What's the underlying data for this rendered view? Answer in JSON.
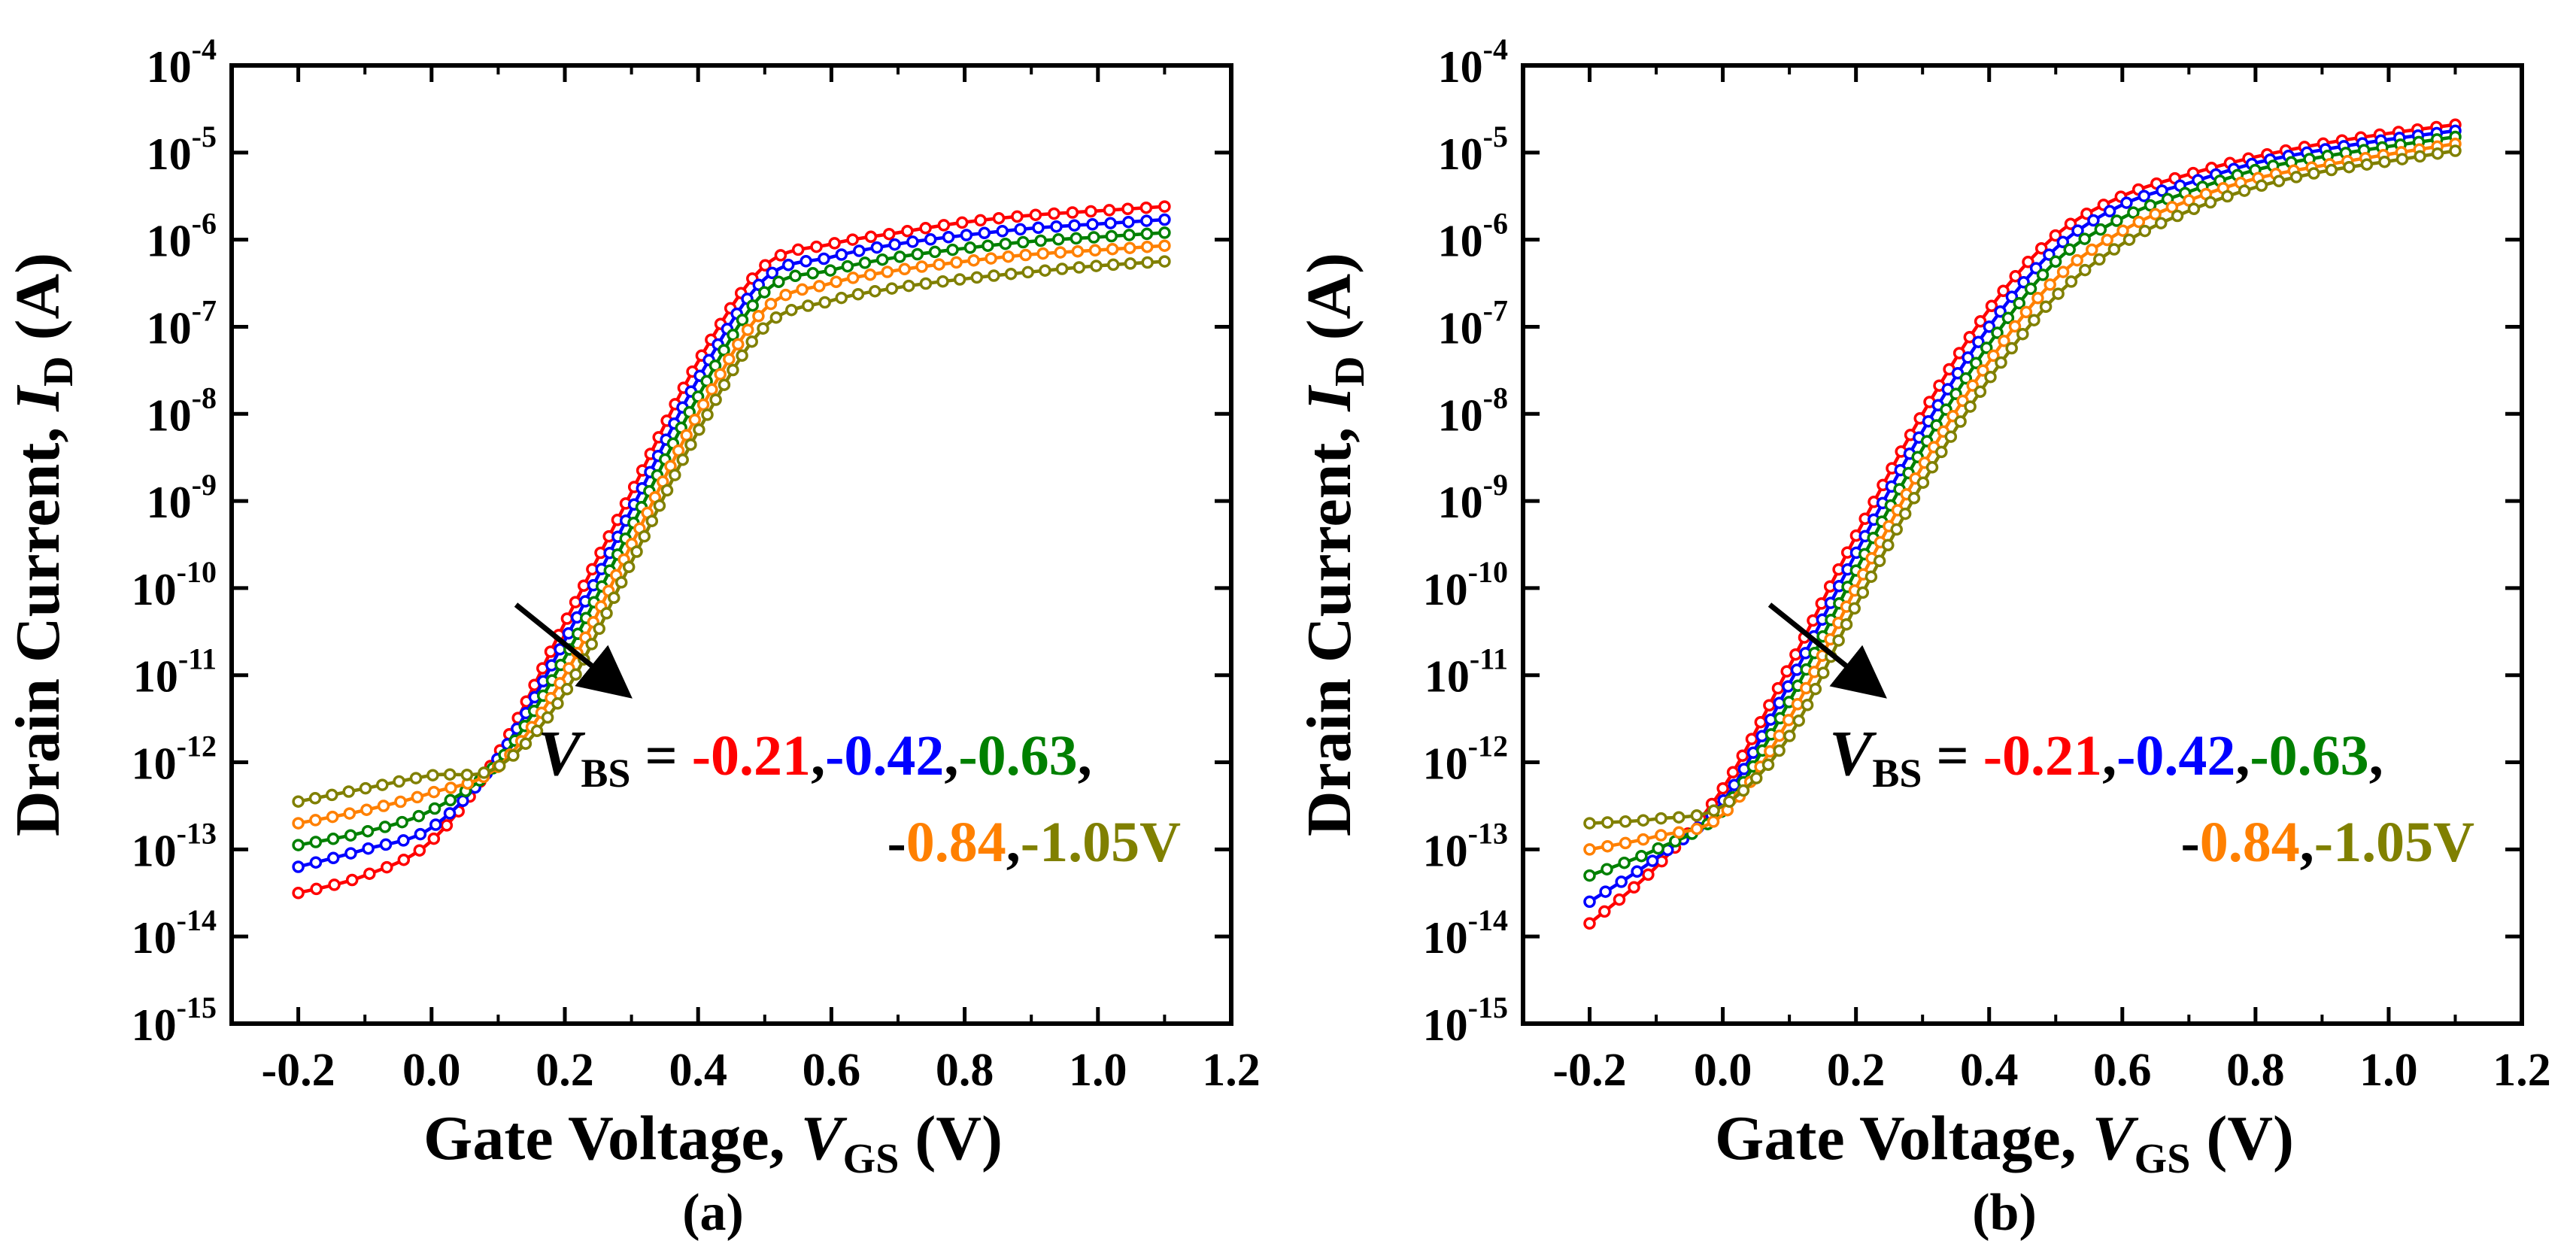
{
  "colors": {
    "vbs_021": "#ff0000",
    "vbs_042": "#0000ff",
    "vbs_063": "#008000",
    "vbs_084": "#ff8000",
    "vbs_105": "#808000",
    "axes": "#000000"
  },
  "chart_data": [
    {
      "type": "line",
      "panel": "(a)",
      "xlabel": "Gate Voltage,",
      "xlabel_var": "V",
      "xlabel_sub": "GS",
      "xlabel_unit": "(V)",
      "ylabel": "Drain Current,",
      "ylabel_var": "I",
      "ylabel_sub": "D",
      "ylabel_unit": "(A)",
      "xlim": [
        -0.3,
        1.2
      ],
      "ylim_exp": [
        -15,
        -4
      ],
      "yscale": "log",
      "x_ticks": [
        "-0.2",
        "0.0",
        "0.2",
        "0.4",
        "0.6",
        "0.8",
        "1.0",
        "1.2"
      ],
      "y_tick_exponents": [
        "-15",
        "-14",
        "-13",
        "-12",
        "-11",
        "-10",
        "-9",
        "-8",
        "-7",
        "-6",
        "-5",
        "-4"
      ],
      "annotation": {
        "var": "V",
        "sub": "BS",
        "eq": " = ",
        "values_line1": [
          "-0.21",
          "-0.42",
          "-0.63"
        ],
        "values_line2": [
          "-",
          "0.84",
          "-1.05V"
        ]
      },
      "series": [
        {
          "name": "-0.21",
          "color_key": "vbs_021",
          "x": [
            -0.2,
            -0.1,
            0.0,
            0.1,
            0.2,
            0.3,
            0.4,
            0.5,
            0.6,
            0.7,
            0.8,
            0.9,
            1.0,
            1.1
          ],
          "y_exp": [
            -13.5,
            -13.3,
            -12.9,
            -11.9,
            -10.4,
            -8.9,
            -7.4,
            -6.3,
            -6.05,
            -5.92,
            -5.8,
            -5.72,
            -5.67,
            -5.62
          ]
        },
        {
          "name": "-0.42",
          "color_key": "vbs_042",
          "x": [
            -0.2,
            -0.1,
            0.0,
            0.1,
            0.2,
            0.3,
            0.4,
            0.5,
            0.6,
            0.7,
            0.8,
            0.9,
            1.0,
            1.1
          ],
          "y_exp": [
            -13.2,
            -13.0,
            -12.75,
            -11.95,
            -10.6,
            -9.1,
            -7.6,
            -6.45,
            -6.2,
            -6.05,
            -5.95,
            -5.87,
            -5.82,
            -5.77
          ]
        },
        {
          "name": "-0.63",
          "color_key": "vbs_063",
          "x": [
            -0.2,
            -0.1,
            0.0,
            0.1,
            0.2,
            0.3,
            0.4,
            0.5,
            0.6,
            0.7,
            0.8,
            0.9,
            1.0,
            1.1
          ],
          "y_exp": [
            -12.95,
            -12.8,
            -12.55,
            -12.0,
            -10.8,
            -9.3,
            -7.8,
            -6.6,
            -6.35,
            -6.2,
            -6.1,
            -6.02,
            -5.97,
            -5.92
          ]
        },
        {
          "name": "-0.84",
          "color_key": "vbs_084",
          "x": [
            -0.2,
            -0.1,
            0.0,
            0.1,
            0.2,
            0.3,
            0.4,
            0.5,
            0.6,
            0.7,
            0.8,
            0.9,
            1.0,
            1.1
          ],
          "y_exp": [
            -12.7,
            -12.55,
            -12.35,
            -12.05,
            -11.0,
            -9.5,
            -8.0,
            -6.8,
            -6.5,
            -6.35,
            -6.25,
            -6.17,
            -6.12,
            -6.07
          ]
        },
        {
          "name": "-1.05",
          "color_key": "vbs_105",
          "x": [
            -0.2,
            -0.1,
            0.0,
            0.1,
            0.2,
            0.3,
            0.4,
            0.5,
            0.6,
            0.7,
            0.8,
            0.9,
            1.0,
            1.1
          ],
          "y_exp": [
            -12.45,
            -12.3,
            -12.15,
            -12.05,
            -11.2,
            -9.7,
            -8.2,
            -7.0,
            -6.7,
            -6.55,
            -6.45,
            -6.37,
            -6.3,
            -6.25
          ]
        }
      ]
    },
    {
      "type": "line",
      "panel": "(b)",
      "xlabel": "Gate Voltage,",
      "xlabel_var": "V",
      "xlabel_sub": "GS",
      "xlabel_unit": "(V)",
      "ylabel": "Drain Current,",
      "ylabel_var": "I",
      "ylabel_sub": "D",
      "ylabel_unit": "(A)",
      "xlim": [
        -0.3,
        1.2
      ],
      "ylim_exp": [
        -15,
        -4
      ],
      "yscale": "log",
      "x_ticks": [
        "-0.2",
        "0.0",
        "0.2",
        "0.4",
        "0.6",
        "0.8",
        "1.0",
        "1.2"
      ],
      "y_tick_exponents": [
        "-15",
        "-14",
        "-13",
        "-12",
        "-11",
        "-10",
        "-9",
        "-8",
        "-7",
        "-6",
        "-5",
        "-4"
      ],
      "annotation": {
        "var": "V",
        "sub": "BS",
        "eq": " = ",
        "values_line1": [
          "-0.21",
          "-0.42",
          "-0.63"
        ],
        "values_line2": [
          "-",
          "0.84",
          "-1.05V"
        ]
      },
      "series": [
        {
          "name": "-0.21",
          "color_key": "vbs_021",
          "x": [
            -0.2,
            -0.1,
            0.0,
            0.1,
            0.2,
            0.3,
            0.4,
            0.5,
            0.6,
            0.7,
            0.8,
            0.9,
            1.0,
            1.1
          ],
          "y_exp": [
            -13.85,
            -13.2,
            -12.3,
            -10.9,
            -9.4,
            -8.0,
            -6.8,
            -5.95,
            -5.5,
            -5.25,
            -5.05,
            -4.9,
            -4.78,
            -4.68
          ]
        },
        {
          "name": "-0.42",
          "color_key": "vbs_042",
          "x": [
            -0.2,
            -0.1,
            0.0,
            0.1,
            0.2,
            0.3,
            0.4,
            0.5,
            0.6,
            0.7,
            0.8,
            0.9,
            1.0,
            1.1
          ],
          "y_exp": [
            -13.6,
            -13.1,
            -12.45,
            -11.1,
            -9.6,
            -8.2,
            -7.0,
            -6.1,
            -5.6,
            -5.35,
            -5.12,
            -4.97,
            -4.85,
            -4.75
          ]
        },
        {
          "name": "-0.63",
          "color_key": "vbs_063",
          "x": [
            -0.2,
            -0.1,
            0.0,
            0.1,
            0.2,
            0.3,
            0.4,
            0.5,
            0.6,
            0.7,
            0.8,
            0.9,
            1.0,
            1.1
          ],
          "y_exp": [
            -13.3,
            -13.0,
            -12.55,
            -11.3,
            -9.8,
            -8.4,
            -7.2,
            -6.25,
            -5.75,
            -5.45,
            -5.2,
            -5.05,
            -4.93,
            -4.82
          ]
        },
        {
          "name": "-0.84",
          "color_key": "vbs_084",
          "x": [
            -0.2,
            -0.1,
            0.0,
            0.1,
            0.2,
            0.3,
            0.4,
            0.5,
            0.6,
            0.7,
            0.8,
            0.9,
            1.0,
            1.1
          ],
          "y_exp": [
            -13.0,
            -12.85,
            -12.6,
            -11.5,
            -10.0,
            -8.6,
            -7.4,
            -6.45,
            -5.9,
            -5.55,
            -5.3,
            -5.15,
            -5.02,
            -4.9
          ]
        },
        {
          "name": "-1.05",
          "color_key": "vbs_105",
          "x": [
            -0.2,
            -0.1,
            0.0,
            0.1,
            0.2,
            0.3,
            0.4,
            0.5,
            0.6,
            0.7,
            0.8,
            0.9,
            1.0,
            1.1
          ],
          "y_exp": [
            -12.7,
            -12.65,
            -12.5,
            -11.7,
            -10.2,
            -8.8,
            -7.6,
            -6.65,
            -6.05,
            -5.67,
            -5.4,
            -5.22,
            -5.1,
            -4.98
          ]
        }
      ]
    }
  ]
}
